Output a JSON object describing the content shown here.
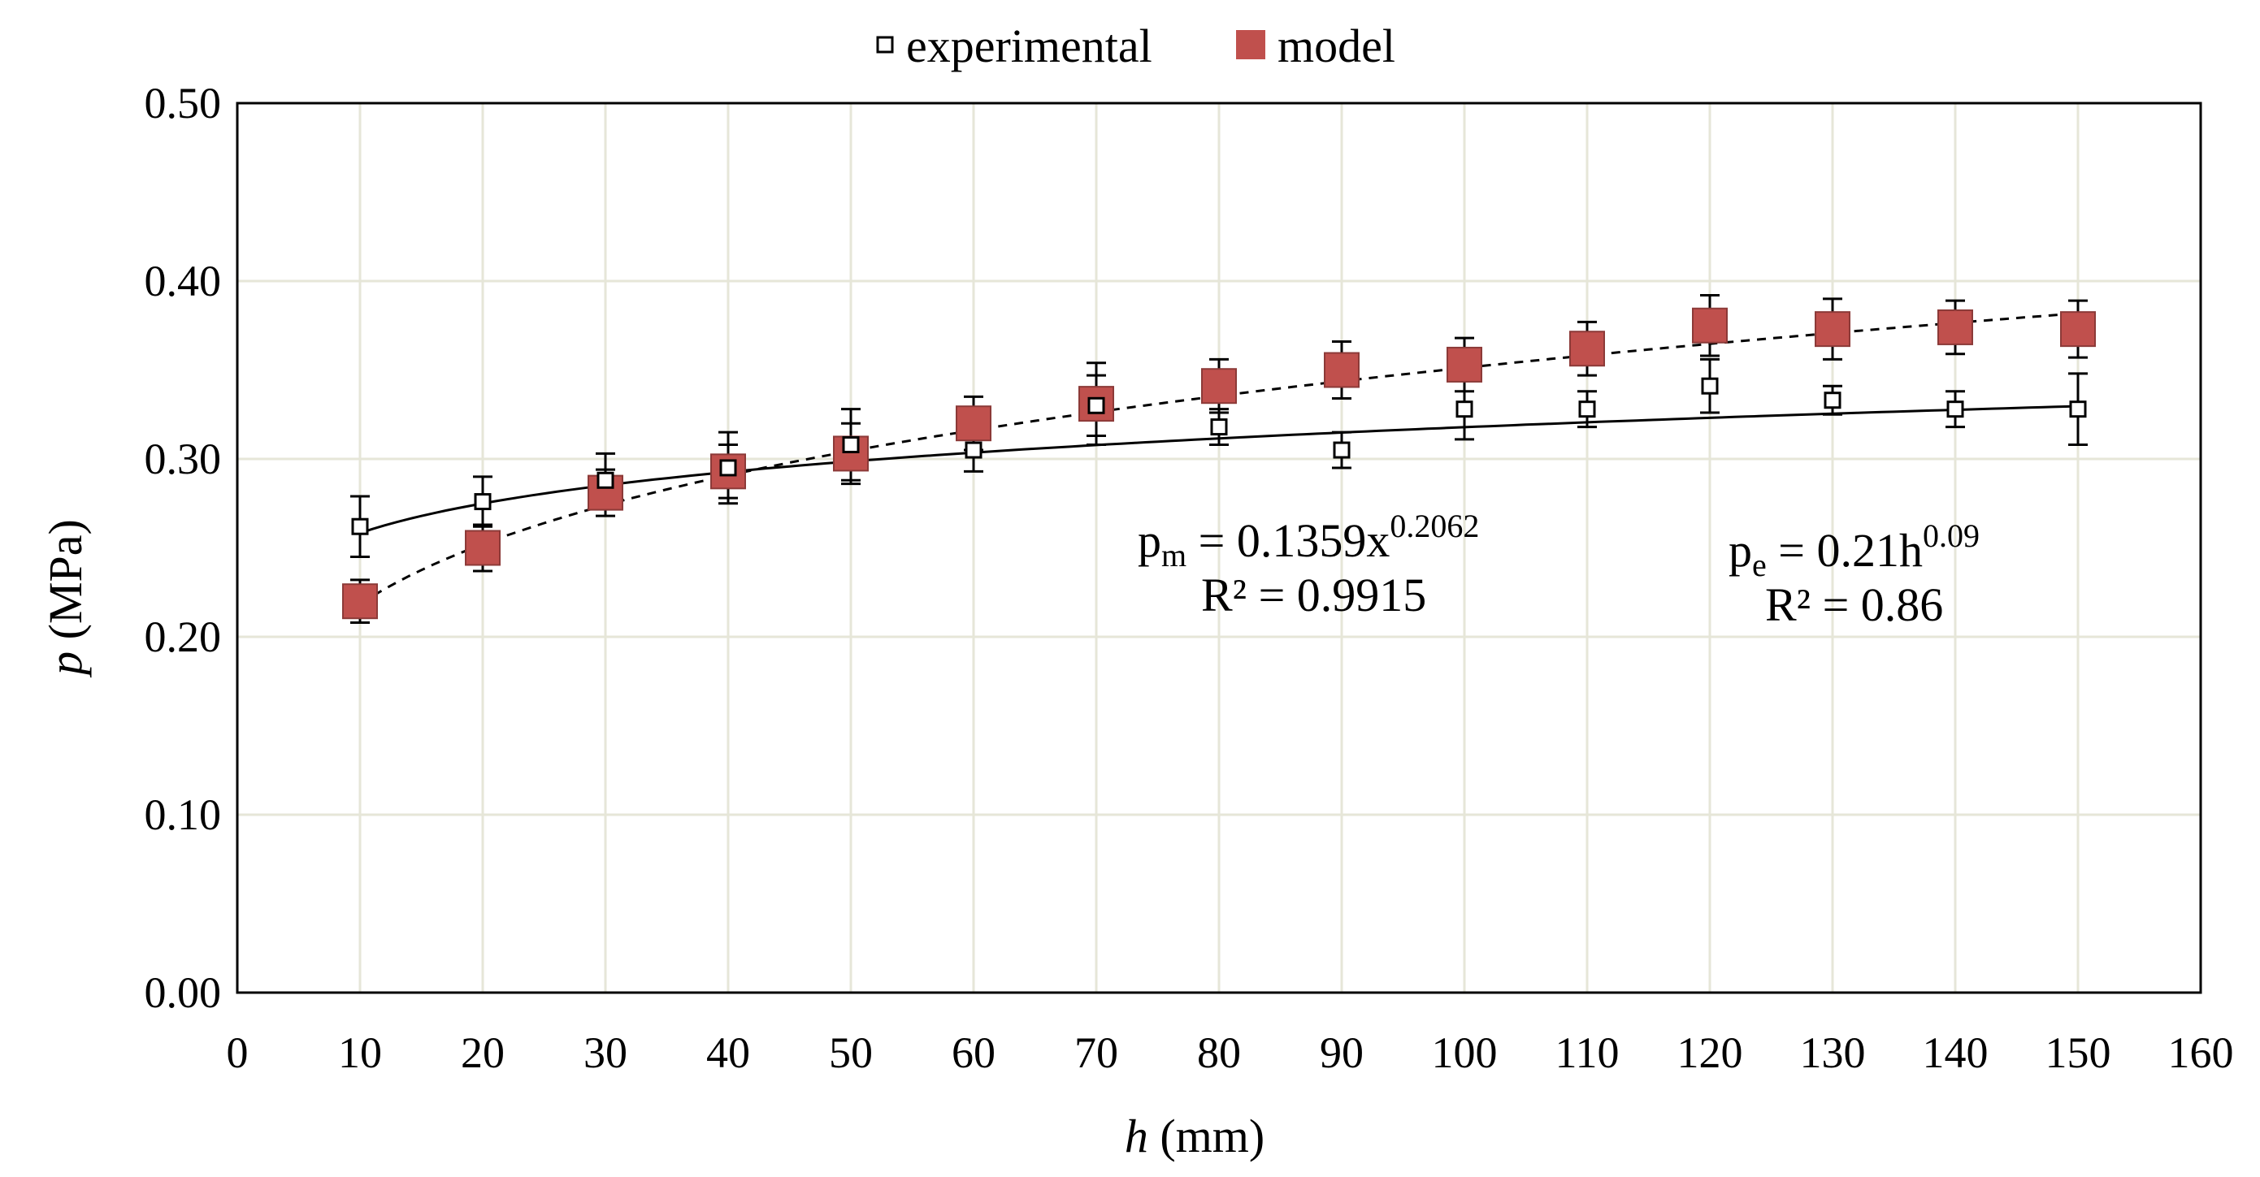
{
  "chart_data": {
    "type": "scatter",
    "xlabel_var": "h",
    "xlabel_unit": " (mm)",
    "ylabel_var": "p",
    "ylabel_unit": " (MPa)",
    "xlim": [
      0,
      160
    ],
    "ylim": [
      0,
      0.5
    ],
    "x_ticks": [
      "0",
      "10",
      "20",
      "30",
      "40",
      "50",
      "60",
      "70",
      "80",
      "90",
      "100",
      "110",
      "120",
      "130",
      "140",
      "150",
      "160"
    ],
    "y_ticks": [
      "0.00",
      "0.10",
      "0.20",
      "0.30",
      "0.40",
      "0.50"
    ],
    "grid": true,
    "legend": {
      "placement": "top-center",
      "entries": [
        "experimental",
        "model"
      ]
    },
    "colors": {
      "model_fill": "#c0504d",
      "model_stroke": "#8c3a38",
      "grid": "#e6e6d8",
      "experimental": "#000000"
    },
    "x": [
      10,
      20,
      30,
      40,
      50,
      60,
      70,
      80,
      90,
      100,
      110,
      120,
      130,
      140,
      150
    ],
    "series": [
      {
        "name": "experimental",
        "marker": "open-square",
        "values": [
          0.262,
          0.276,
          0.288,
          0.295,
          0.308,
          0.305,
          0.33,
          0.318,
          0.305,
          0.328,
          0.328,
          0.341,
          0.333,
          0.328,
          0.328
        ],
        "errors": [
          0.017,
          0.014,
          0.015,
          0.02,
          0.02,
          0.012,
          0.017,
          0.01,
          0.01,
          0.017,
          0.01,
          0.015,
          0.008,
          0.01,
          0.02
        ],
        "fit": {
          "a": 0.21,
          "b": 0.09,
          "style": "solid"
        }
      },
      {
        "name": "model",
        "marker": "filled-square",
        "values": [
          0.22,
          0.25,
          0.281,
          0.293,
          0.303,
          0.32,
          0.331,
          0.341,
          0.35,
          0.353,
          0.362,
          0.375,
          0.373,
          0.374,
          0.373
        ],
        "errors": [
          0.012,
          0.013,
          0.013,
          0.015,
          0.017,
          0.015,
          0.023,
          0.015,
          0.016,
          0.015,
          0.015,
          0.017,
          0.017,
          0.015,
          0.016
        ],
        "fit": {
          "a": 0.1359,
          "b": 0.2062,
          "style": "dashed"
        }
      }
    ],
    "annotations": {
      "model_eq": {
        "lhs": "p",
        "sub": "m",
        "mid": " = 0.1359x",
        "sup": "0.2062",
        "r2": "R² = 0.9915"
      },
      "exp_eq": {
        "lhs": "p",
        "sub": "e",
        "mid": " = 0.21h",
        "sup": "0.09",
        "r2": "R² = 0.86"
      }
    }
  }
}
